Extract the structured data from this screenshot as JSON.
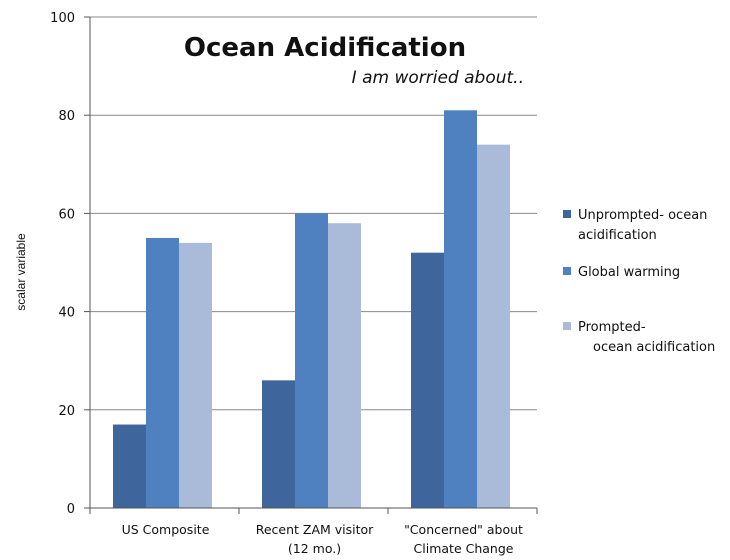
{
  "chart_data": {
    "type": "bar",
    "title": "Ocean Acidification",
    "subtitle": "I am worried about..",
    "ylabel": "scalar variable",
    "ylim": [
      0,
      100
    ],
    "yticks": [
      0,
      20,
      40,
      60,
      80,
      100
    ],
    "grid": true,
    "legend_position": "right",
    "categories": [
      [
        "US Composite"
      ],
      [
        "Recent ZAM visitor",
        "(12 mo.)"
      ],
      [
        "\"Concerned\" about",
        "Climate Change"
      ]
    ],
    "series": [
      {
        "name": [
          "Unprompted- ocean",
          "acidification"
        ],
        "color": "#3f669c",
        "values": [
          17,
          26,
          52
        ]
      },
      {
        "name": [
          "Global warming"
        ],
        "color": "#4f81c0",
        "values": [
          55,
          60,
          81
        ]
      },
      {
        "name": [
          "Prompted-",
          "ocean acidification"
        ],
        "color": "#a9bbd9",
        "values": [
          54,
          58,
          74
        ]
      }
    ]
  }
}
